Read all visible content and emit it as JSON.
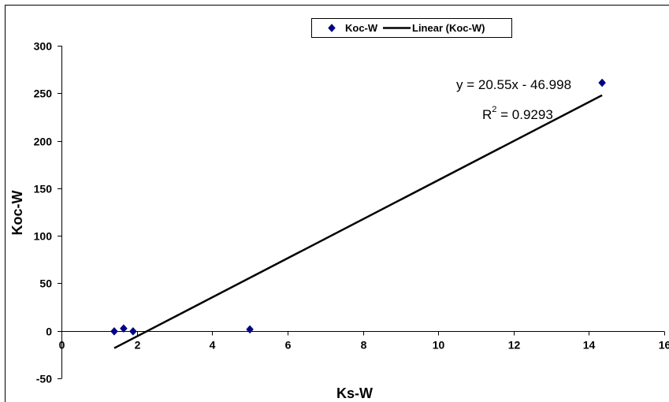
{
  "chart_data": {
    "type": "scatter",
    "xlabel": "Ks-W",
    "ylabel": "Koc-W",
    "xlim": [
      0,
      16
    ],
    "ylim": [
      -50,
      300
    ],
    "x_ticks": [
      0,
      2,
      4,
      6,
      8,
      10,
      12,
      14,
      16
    ],
    "y_ticks": [
      -50,
      0,
      50,
      100,
      150,
      200,
      250,
      300
    ],
    "grid": false,
    "legend_position": "top-center",
    "series": [
      {
        "name": "Koc-W",
        "marker": "diamond",
        "color": "#00008B",
        "points": [
          {
            "x": 1.4,
            "y": -0.5
          },
          {
            "x": 1.65,
            "y": 2.5
          },
          {
            "x": 1.9,
            "y": -0.5
          },
          {
            "x": 5.0,
            "y": 1.5
          },
          {
            "x": 14.35,
            "y": 261
          }
        ]
      }
    ],
    "trendline": {
      "name": "Linear (Koc-W)",
      "color": "#000000",
      "slope": 20.55,
      "intercept": -46.998,
      "x_range": [
        1.4,
        14.35
      ],
      "equation": "y = 20.55x - 46.998",
      "r2_prefix": "R",
      "r2_sup": "2",
      "r2_value": " = 0.9293"
    }
  }
}
